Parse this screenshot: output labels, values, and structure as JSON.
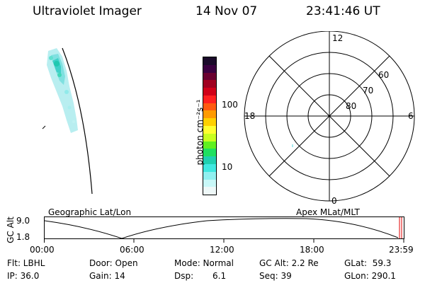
{
  "header": {
    "instrument": "Ultraviolet Imager",
    "date": "14 Nov 07",
    "time": "23:41:46 UT"
  },
  "colorbar": {
    "unit_label": "photon cm⁻²s⁻¹",
    "tick_labels": [
      "100",
      "10"
    ],
    "colors": [
      "#1a0a2a",
      "#3a0040",
      "#6a0030",
      "#a00020",
      "#d00018",
      "#ff2020",
      "#ff5a10",
      "#ff9a00",
      "#ffd000",
      "#ffff30",
      "#c8ff20",
      "#60f020",
      "#20e060",
      "#20d0b0",
      "#40e8e0",
      "#90f0f0",
      "#c8f8f8",
      "#eef8f8"
    ]
  },
  "polar_plot": {
    "mlt_labels": [
      "12",
      "18",
      "6",
      "0"
    ],
    "lat_labels": [
      "60",
      "70",
      "80"
    ]
  },
  "timeline": {
    "left_label": "Geographic Lat/Lon",
    "right_label": "Apex MLat/MLT",
    "y_axis_label": "GC Alt",
    "y_ticks": [
      "9.0",
      "1.8"
    ],
    "x_ticks": [
      "00:00",
      "06:00",
      "12:00",
      "18:00",
      "23:59"
    ]
  },
  "info": {
    "filter": "Flt: LBHL",
    "ip": "IP: 36.0",
    "door": "Door: Open",
    "gain": "Gain: 14",
    "mode": "Mode: Normal",
    "dsp_label": "Dsp:",
    "dsp_value": "6.1",
    "gc_alt": "GC Alt: 2.2 Re",
    "seq": "Seq: 39",
    "glat": "GLat:  59.3",
    "glon": "GLon: 290.1"
  }
}
